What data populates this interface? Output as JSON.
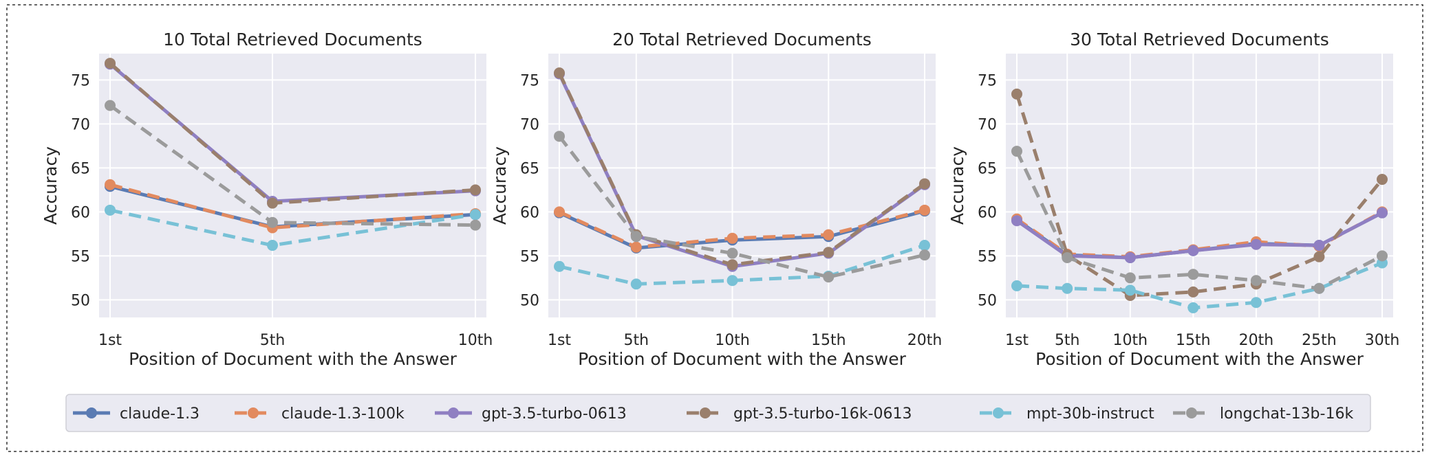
{
  "chart_data": [
    {
      "type": "line",
      "title": "10 Total Retrieved Documents",
      "xlabel": "Position of Document with the Answer",
      "ylabel": "Accuracy",
      "categories": [
        "1st",
        "5th",
        "10th"
      ],
      "x": [
        1,
        5,
        10
      ],
      "ylim": [
        48,
        78
      ],
      "yticks": [
        50,
        55,
        60,
        65,
        70,
        75
      ],
      "grid": true,
      "series": [
        {
          "name": "claude-1.3",
          "values": [
            62.9,
            58.3,
            59.7
          ]
        },
        {
          "name": "claude-1.3-100k",
          "values": [
            63.1,
            58.2,
            59.8
          ]
        },
        {
          "name": "gpt-3.5-turbo-0613",
          "values": [
            76.8,
            61.2,
            62.4
          ]
        },
        {
          "name": "gpt-3.5-turbo-16k-0613",
          "values": [
            76.9,
            61.0,
            62.5
          ]
        },
        {
          "name": "mpt-30b-instruct",
          "values": [
            60.2,
            56.2,
            59.7
          ]
        },
        {
          "name": "longchat-13b-16k",
          "values": [
            72.1,
            58.8,
            58.5
          ]
        }
      ]
    },
    {
      "type": "line",
      "title": "20 Total Retrieved Documents",
      "xlabel": "Position of Document with the Answer",
      "ylabel": "Accuracy",
      "categories": [
        "1st",
        "5th",
        "10th",
        "15th",
        "20th"
      ],
      "x": [
        1,
        5,
        10,
        15,
        20
      ],
      "ylim": [
        48,
        78
      ],
      "yticks": [
        50,
        55,
        60,
        65,
        70,
        75
      ],
      "grid": true,
      "series": [
        {
          "name": "claude-1.3",
          "values": [
            59.9,
            55.9,
            56.8,
            57.2,
            60.1
          ]
        },
        {
          "name": "claude-1.3-100k",
          "values": [
            60.0,
            56.0,
            57.0,
            57.4,
            60.2
          ]
        },
        {
          "name": "gpt-3.5-turbo-0613",
          "values": [
            75.7,
            57.3,
            53.8,
            55.3,
            63.1
          ]
        },
        {
          "name": "gpt-3.5-turbo-16k-0613",
          "values": [
            75.8,
            57.4,
            54.0,
            55.4,
            63.2
          ]
        },
        {
          "name": "mpt-30b-instruct",
          "values": [
            53.8,
            51.8,
            52.2,
            52.7,
            56.2
          ]
        },
        {
          "name": "longchat-13b-16k",
          "values": [
            68.6,
            57.2,
            55.3,
            52.6,
            55.1
          ]
        }
      ]
    },
    {
      "type": "line",
      "title": "30 Total Retrieved Documents",
      "xlabel": "Position of Document with the Answer",
      "ylabel": "Accuracy",
      "categories": [
        "1st",
        "5th",
        "10th",
        "15th",
        "20th",
        "25th",
        "30th"
      ],
      "x": [
        1,
        5,
        10,
        15,
        20,
        25,
        30
      ],
      "ylim": [
        48,
        78
      ],
      "yticks": [
        50,
        55,
        60,
        65,
        70,
        75
      ],
      "grid": true,
      "series": [
        {
          "name": "claude-1.3",
          "values": [
            59.1,
            55.1,
            54.8,
            55.6,
            56.4,
            56.2,
            59.9
          ]
        },
        {
          "name": "claude-1.3-100k",
          "values": [
            59.2,
            55.2,
            54.9,
            55.7,
            56.6,
            56.1,
            60.0
          ]
        },
        {
          "name": "gpt-3.5-turbo-0613",
          "values": [
            59.0,
            55.0,
            54.8,
            55.6,
            56.3,
            56.2,
            59.9
          ]
        },
        {
          "name": "gpt-3.5-turbo-16k-0613",
          "values": [
            73.4,
            55.1,
            50.5,
            50.9,
            51.8,
            54.9,
            63.7
          ]
        },
        {
          "name": "mpt-30b-instruct",
          "values": [
            51.6,
            51.3,
            51.1,
            49.1,
            49.7,
            51.3,
            54.2
          ]
        },
        {
          "name": "longchat-13b-16k",
          "values": [
            66.9,
            54.8,
            52.5,
            52.9,
            52.2,
            51.3,
            55.0
          ]
        }
      ]
    }
  ],
  "legend": {
    "placement": "bottom",
    "items": [
      {
        "label": "claude-1.3",
        "color": "#5a7bb3",
        "dashed": false
      },
      {
        "label": "claude-1.3-100k",
        "color": "#e28a5f",
        "dashed": true
      },
      {
        "label": "gpt-3.5-turbo-0613",
        "color": "#8f7fc2",
        "dashed": false
      },
      {
        "label": "gpt-3.5-turbo-16k-0613",
        "color": "#9a7f6c",
        "dashed": true
      },
      {
        "label": "mpt-30b-instruct",
        "color": "#78c1d6",
        "dashed": true
      },
      {
        "label": "longchat-13b-16k",
        "color": "#9b9b9b",
        "dashed": true
      }
    ]
  },
  "colors": {
    "plot_background": "#eaeaf2",
    "grid": "#ffffff",
    "text": "#262626"
  }
}
